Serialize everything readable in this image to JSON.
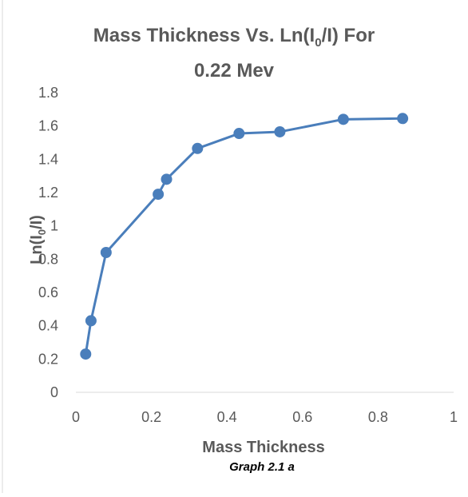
{
  "chart_data": {
    "type": "line",
    "title_main": "Mass Thickness Vs. Ln(I",
    "title_sub0": "0",
    "title_rest": "/I) For",
    "title_line2": "0.22 Mev",
    "xlabel": "Mass Thickness",
    "ylabel_main": "Ln(I",
    "ylabel_sub0": "0",
    "ylabel_rest": "/I)",
    "caption": "Graph 2.1 a",
    "xlim": [
      0,
      1
    ],
    "ylim": [
      0,
      1.8
    ],
    "x_ticks": [
      "0",
      "0.2",
      "0.4",
      "0.6",
      "0.8",
      "1"
    ],
    "y_ticks": [
      "0",
      "0.2",
      "0.4",
      "0.6",
      "0.8",
      "1",
      "1.2",
      "1.4",
      "1.6",
      "1.8"
    ],
    "series": [
      {
        "color": "#4a7ebb",
        "points": [
          {
            "x": 0.026,
            "y": 0.23
          },
          {
            "x": 0.04,
            "y": 0.43
          },
          {
            "x": 0.08,
            "y": 0.84
          },
          {
            "x": 0.218,
            "y": 1.19
          },
          {
            "x": 0.24,
            "y": 1.28
          },
          {
            "x": 0.322,
            "y": 1.465
          },
          {
            "x": 0.432,
            "y": 1.555
          },
          {
            "x": 0.54,
            "y": 1.565
          },
          {
            "x": 0.708,
            "y": 1.64
          },
          {
            "x": 0.865,
            "y": 1.645
          }
        ]
      }
    ],
    "grid": false,
    "legend": "none"
  }
}
